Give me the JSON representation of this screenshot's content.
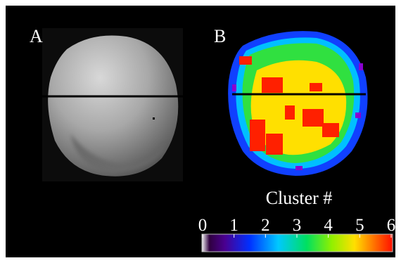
{
  "panels": [
    {
      "label": "A"
    },
    {
      "label": "B"
    }
  ],
  "colorbar": {
    "title": "Cluster #",
    "range": [
      0,
      6
    ],
    "ticks": [
      0,
      1,
      2,
      3,
      4,
      5,
      6
    ]
  }
}
